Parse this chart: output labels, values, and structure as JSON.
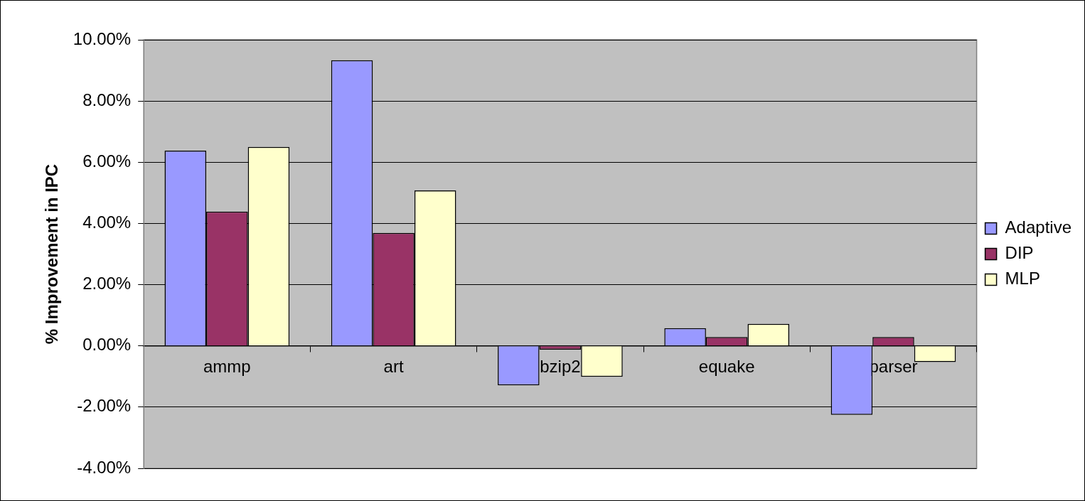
{
  "chart_data": {
    "type": "bar",
    "ylabel": "% Improvement in IPC",
    "categories": [
      "ammp",
      "art",
      "bzip2",
      "equake",
      "parser"
    ],
    "series": [
      {
        "name": "Adaptive",
        "color": "#9999ff",
        "values": [
          6.38,
          9.33,
          -1.29,
          0.58,
          -2.25
        ]
      },
      {
        "name": "DIP",
        "color": "#993366",
        "values": [
          4.39,
          3.69,
          -0.12,
          0.29,
          0.29
        ]
      },
      {
        "name": "MLP",
        "color": "#ffffcc",
        "values": [
          6.5,
          5.08,
          -1.01,
          0.72,
          -0.53
        ]
      }
    ],
    "ylim": [
      -4,
      10
    ],
    "yticks": [
      {
        "value": -4,
        "label": "-4.00%"
      },
      {
        "value": -2,
        "label": "-2.00%"
      },
      {
        "value": 0,
        "label": "0.00%"
      },
      {
        "value": 2,
        "label": "2.00%"
      },
      {
        "value": 4,
        "label": "4.00%"
      },
      {
        "value": 6,
        "label": "6.00%"
      },
      {
        "value": 8,
        "label": "8.00%"
      },
      {
        "value": 10,
        "label": "10.00%"
      }
    ],
    "grid": "y",
    "legend": "right"
  }
}
